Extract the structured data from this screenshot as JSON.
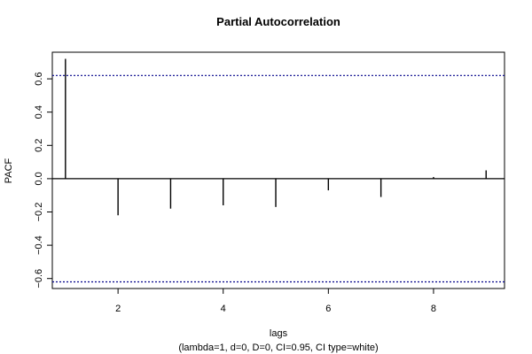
{
  "chart_data": {
    "type": "bar",
    "title": "Partial Autocorrelation",
    "xlabel": "lags",
    "subtitle": "(lambda=1, d=0, D=0, CI=0.95, CI type=white)",
    "ylabel": "PACF",
    "xlim": [
      0.75,
      9.35
    ],
    "ylim": [
      -0.66,
      0.76
    ],
    "xticks": [
      2,
      4,
      6,
      8
    ],
    "xtick_labels": [
      "2",
      "4",
      "6",
      "8"
    ],
    "yticks": [
      -0.6,
      -0.4,
      -0.2,
      0.0,
      0.2,
      0.4,
      0.6
    ],
    "ytick_labels": [
      "−0.6",
      "−0.4",
      "−0.2",
      "0.0",
      "0.2",
      "0.4",
      "0.6"
    ],
    "lags": [
      1,
      2,
      3,
      4,
      5,
      6,
      7,
      8,
      9
    ],
    "values": [
      0.72,
      -0.22,
      -0.18,
      -0.16,
      -0.17,
      -0.07,
      -0.11,
      0.01,
      0.05
    ],
    "ci_upper": 0.62,
    "ci_lower": -0.62,
    "colors": {
      "ci_line": "#00008b",
      "bars": "#000000",
      "zero_line": "#000000"
    }
  }
}
